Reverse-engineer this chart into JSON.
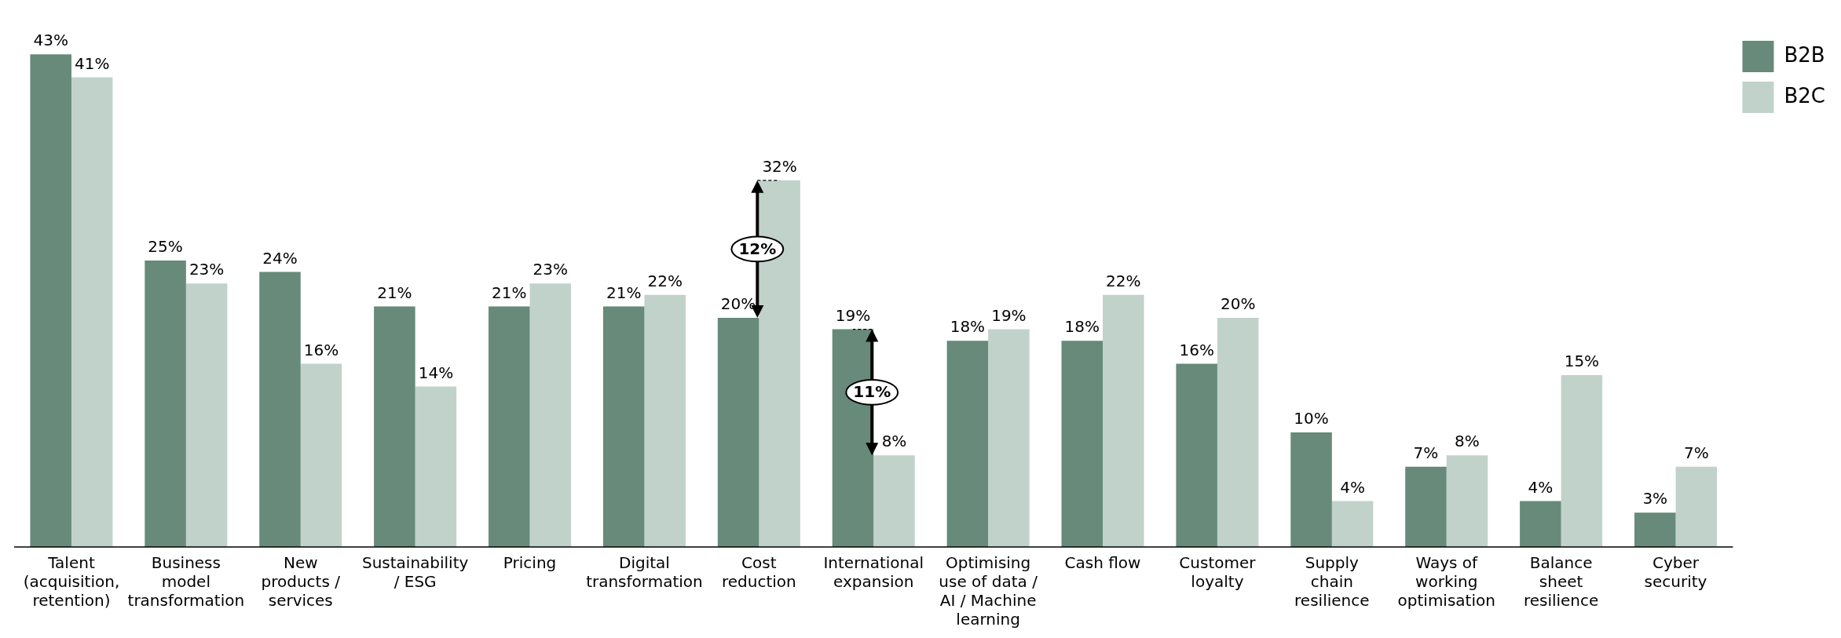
{
  "chart_data": {
    "type": "bar",
    "categories": [
      "Talent (acquisition, retention)",
      "Business model transformation",
      "New products / services",
      "Sustainability / ESG",
      "Pricing",
      "Digital transformation",
      "Cost reduction",
      "International expansion",
      "Optimising use of data / AI / Machine learning",
      "Cash flow",
      "Customer loyalty",
      "Supply chain resilience",
      "Ways of working optimisation",
      "Balance sheet resilience",
      "Cyber security"
    ],
    "series": [
      {
        "name": "B2B",
        "color": "#678a7a",
        "values": [
          43,
          25,
          24,
          21,
          21,
          21,
          20,
          19,
          18,
          18,
          16,
          10,
          7,
          4,
          3
        ],
        "value_labels": [
          "43%",
          "25%",
          "24%",
          "21%",
          "21%",
          "21%",
          "20%",
          "19%",
          "18%",
          "18%",
          "16%",
          "10%",
          "7%",
          "4%",
          "3%"
        ]
      },
      {
        "name": "B2C",
        "color": "#c1d2cb",
        "values": [
          41,
          23,
          16,
          14,
          23,
          22,
          32,
          8,
          19,
          22,
          20,
          4,
          8,
          15,
          7
        ],
        "value_labels": [
          "41%",
          "23%",
          "16%",
          "14%",
          "23%",
          "22%",
          "32%",
          "8%",
          "19%",
          "22%",
          "20%",
          "4%",
          "8%",
          "15%",
          "7%"
        ]
      }
    ],
    "grid": false,
    "legend": "top right",
    "annotations": [
      {
        "text": "12%",
        "x": "Cost reduction",
        "y": 26
      },
      {
        "text": "11%",
        "x": "International expansion",
        "y": 13.5
      }
    ]
  }
}
